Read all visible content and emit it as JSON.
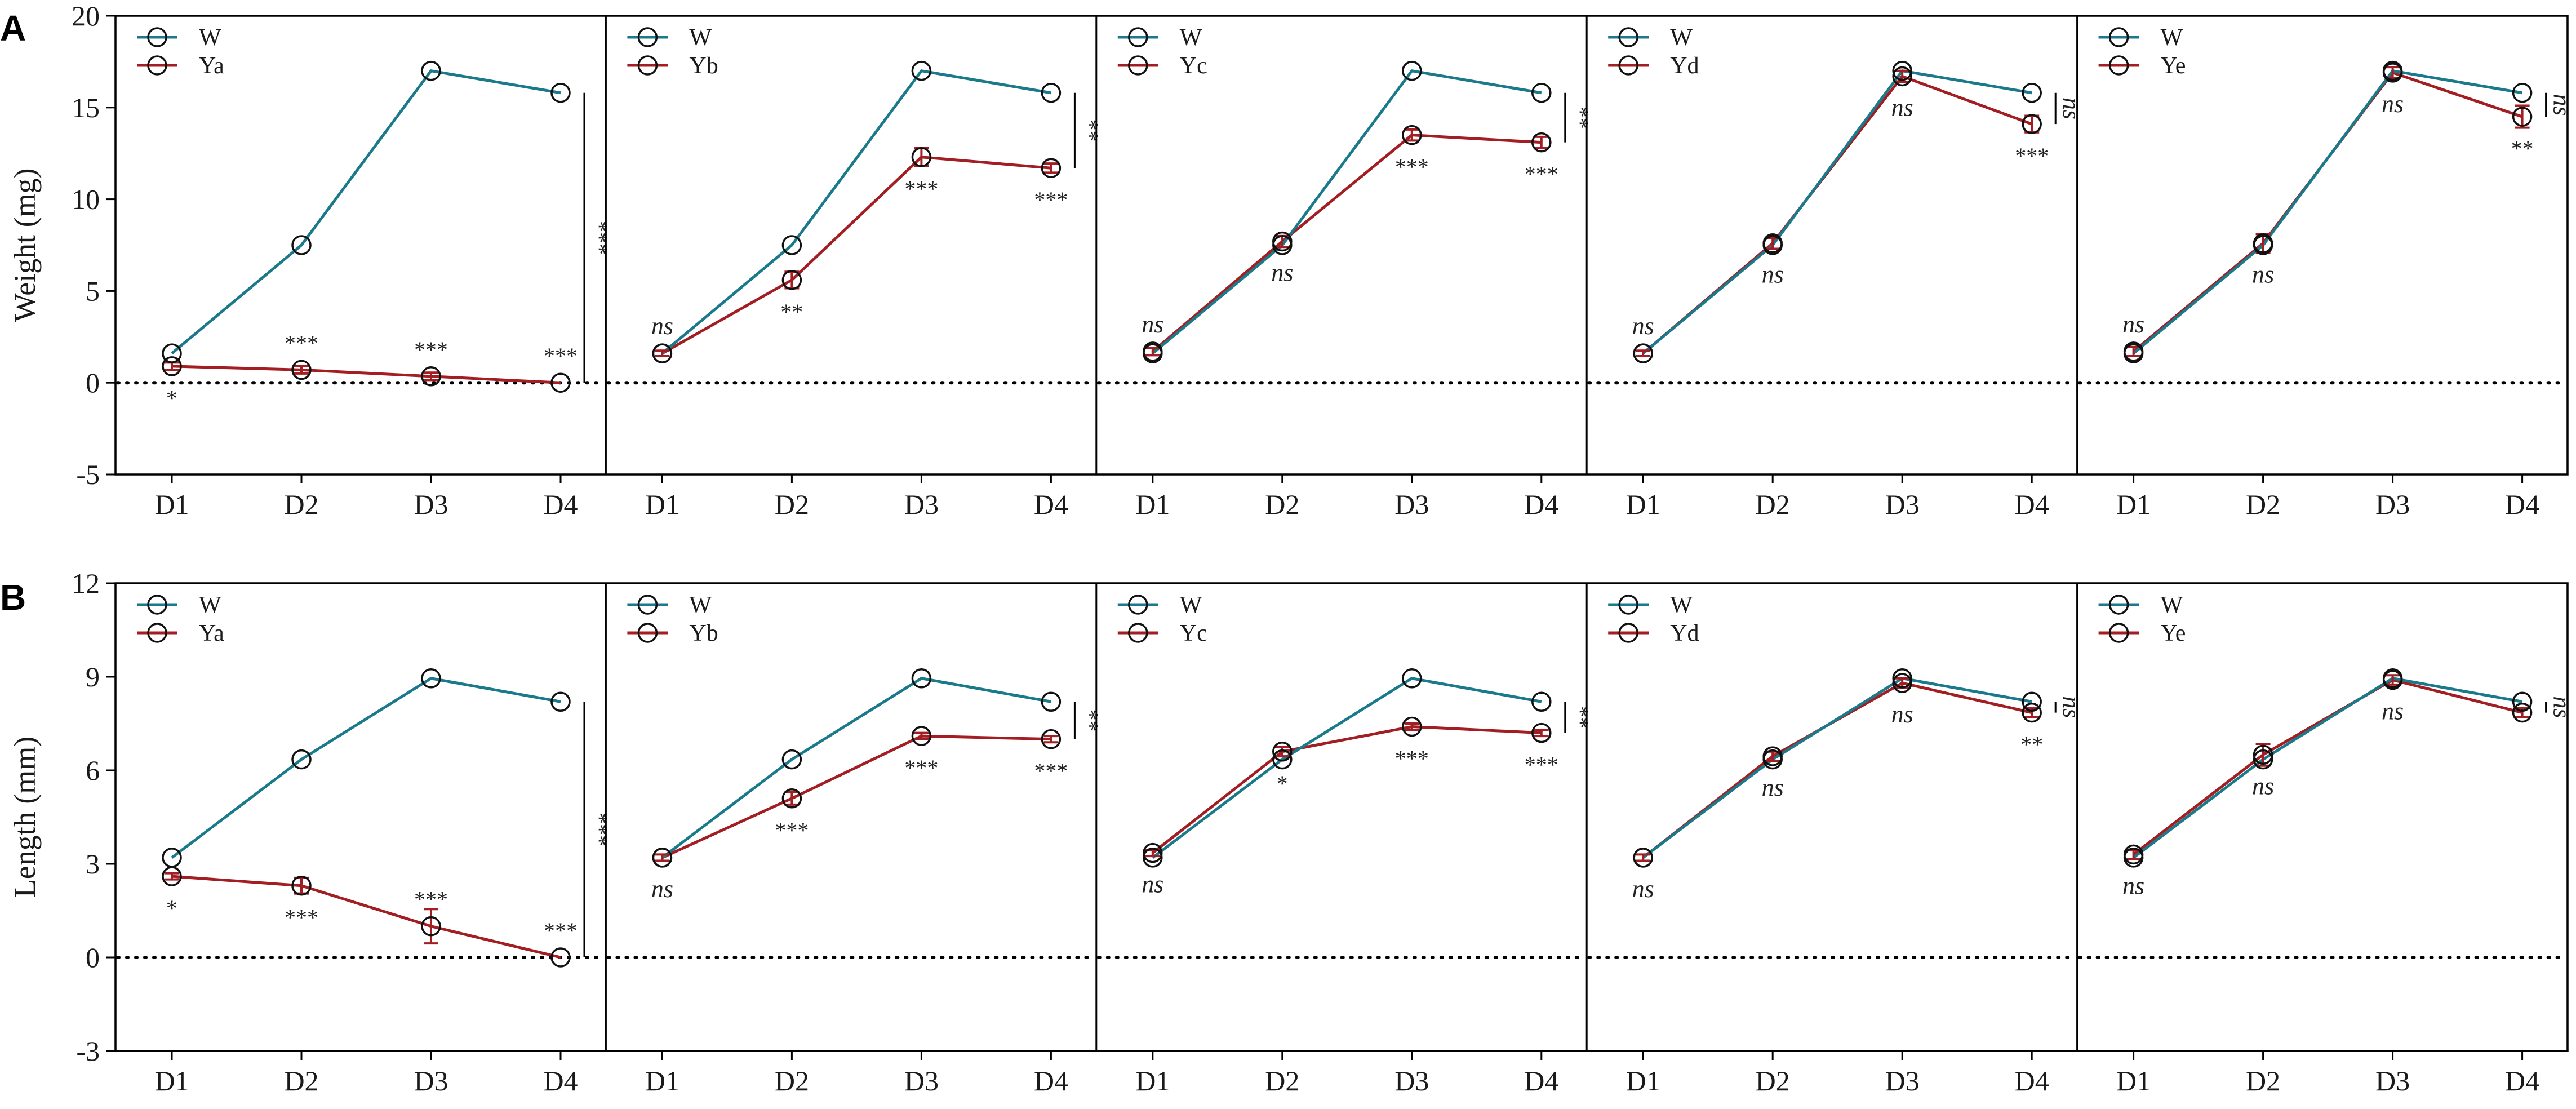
{
  "colors": {
    "control": "#1a7a8c",
    "treatment": "#a31e22",
    "frame": "#000000",
    "marker_edge": "#111111"
  },
  "chart_data": [
    {
      "panel": "A",
      "type": "line",
      "ylabel": "Weight (mg)",
      "ylim": [
        -5,
        20
      ],
      "yticks": [
        "-5",
        "0",
        "5",
        "10",
        "15",
        "20"
      ],
      "ytick_values": [
        -5,
        0,
        5,
        10,
        15,
        20
      ],
      "categories": [
        "D1",
        "D2",
        "D3",
        "D4"
      ],
      "control": {
        "name": "W",
        "values": [
          1.6,
          7.5,
          17.0,
          15.8
        ]
      },
      "subplots": [
        {
          "treatment": {
            "name": "Ya",
            "values": [
              0.9,
              0.7,
              0.35,
              0.0
            ],
            "err": [
              0.2,
              0.2,
              0.2,
              0
            ]
          },
          "point_sig": [
            {
              "text": "*",
              "pos": "below"
            },
            {
              "text": "***",
              "pos": "above"
            },
            {
              "text": "***",
              "pos": "above"
            },
            {
              "text": "***",
              "pos": "above"
            }
          ],
          "overall_sig": "***",
          "overall_ns": false
        },
        {
          "treatment": {
            "name": "Yb",
            "values": [
              1.6,
              5.6,
              12.3,
              11.7
            ],
            "err": [
              0.15,
              0.45,
              0.5,
              0.25
            ]
          },
          "point_sig": [
            {
              "text": "ns",
              "pos": "above"
            },
            {
              "text": "**",
              "pos": "below"
            },
            {
              "text": "***",
              "pos": "below"
            },
            {
              "text": "***",
              "pos": "below"
            }
          ],
          "overall_sig": "**",
          "overall_ns": false
        },
        {
          "treatment": {
            "name": "Yc",
            "values": [
              1.7,
              7.7,
              13.5,
              13.1
            ],
            "err": [
              0.2,
              0.3,
              0.3,
              0.3
            ]
          },
          "point_sig": [
            {
              "text": "ns",
              "pos": "above"
            },
            {
              "text": "ns",
              "pos": "below"
            },
            {
              "text": "***",
              "pos": "below"
            },
            {
              "text": "***",
              "pos": "below"
            }
          ],
          "overall_sig": "**",
          "overall_ns": false
        },
        {
          "treatment": {
            "name": "Yd",
            "values": [
              1.6,
              7.6,
              16.7,
              14.1
            ],
            "err": [
              0.15,
              0.3,
              0.3,
              0.45
            ]
          },
          "point_sig": [
            {
              "text": "ns",
              "pos": "above"
            },
            {
              "text": "ns",
              "pos": "below"
            },
            {
              "text": "ns",
              "pos": "below"
            },
            {
              "text": "***",
              "pos": "below"
            }
          ],
          "overall_sig": "ns",
          "overall_ns": true
        },
        {
          "treatment": {
            "name": "Ye",
            "values": [
              1.7,
              7.6,
              16.9,
              14.5
            ],
            "err": [
              0.25,
              0.5,
              0.3,
              0.6
            ]
          },
          "point_sig": [
            {
              "text": "ns",
              "pos": "above"
            },
            {
              "text": "ns",
              "pos": "below"
            },
            {
              "text": "ns",
              "pos": "below"
            },
            {
              "text": "**",
              "pos": "below"
            }
          ],
          "overall_sig": "ns",
          "overall_ns": true
        }
      ]
    },
    {
      "panel": "B",
      "type": "line",
      "ylabel": "Length (mm)",
      "ylim": [
        -3,
        12
      ],
      "yticks": [
        "-3",
        "0",
        "3",
        "6",
        "9",
        "12"
      ],
      "ytick_values": [
        -3,
        0,
        3,
        6,
        9,
        12
      ],
      "categories": [
        "D1",
        "D2",
        "D3",
        "D4"
      ],
      "control": {
        "name": "W",
        "values": [
          3.2,
          6.35,
          8.95,
          8.2
        ]
      },
      "subplots": [
        {
          "treatment": {
            "name": "Ya",
            "values": [
              2.6,
              2.3,
              1.0,
              0.0
            ],
            "err": [
              0.1,
              0.25,
              0.55,
              0
            ]
          },
          "point_sig": [
            {
              "text": "*",
              "pos": "below"
            },
            {
              "text": "***",
              "pos": "below"
            },
            {
              "text": "***",
              "pos": "above"
            },
            {
              "text": "***",
              "pos": "above"
            }
          ],
          "overall_sig": "***",
          "overall_ns": false
        },
        {
          "treatment": {
            "name": "Yb",
            "values": [
              3.2,
              5.1,
              7.1,
              7.0
            ],
            "err": [
              0.1,
              0.2,
              0.1,
              0.1
            ]
          },
          "point_sig": [
            {
              "text": "ns",
              "pos": "below"
            },
            {
              "text": "***",
              "pos": "below"
            },
            {
              "text": "***",
              "pos": "below"
            },
            {
              "text": "***",
              "pos": "below"
            }
          ],
          "overall_sig": "**",
          "overall_ns": false
        },
        {
          "treatment": {
            "name": "Yc",
            "values": [
              3.35,
              6.6,
              7.4,
              7.2
            ],
            "err": [
              0.1,
              0.15,
              0.1,
              0.1
            ]
          },
          "point_sig": [
            {
              "text": "ns",
              "pos": "below"
            },
            {
              "text": "*",
              "pos": "below"
            },
            {
              "text": "***",
              "pos": "below"
            },
            {
              "text": "***",
              "pos": "below"
            }
          ],
          "overall_sig": "**",
          "overall_ns": false
        },
        {
          "treatment": {
            "name": "Yd",
            "values": [
              3.2,
              6.45,
              8.8,
              7.85
            ],
            "err": [
              0.1,
              0.15,
              0.15,
              0.15
            ]
          },
          "point_sig": [
            {
              "text": "ns",
              "pos": "below"
            },
            {
              "text": "ns",
              "pos": "below"
            },
            {
              "text": "ns",
              "pos": "below"
            },
            {
              "text": "**",
              "pos": "below"
            }
          ],
          "overall_sig": "ns",
          "overall_ns": true
        },
        {
          "treatment": {
            "name": "Ye",
            "values": [
              3.3,
              6.5,
              8.9,
              7.85
            ],
            "err": [
              0.15,
              0.35,
              0.15,
              0.15
            ]
          },
          "point_sig": [
            {
              "text": "ns",
              "pos": "below"
            },
            {
              "text": "ns",
              "pos": "below"
            },
            {
              "text": "ns",
              "pos": "below"
            },
            {
              "text": "",
              "pos": "below"
            }
          ],
          "overall_sig": "ns",
          "overall_ns": true
        }
      ]
    }
  ]
}
